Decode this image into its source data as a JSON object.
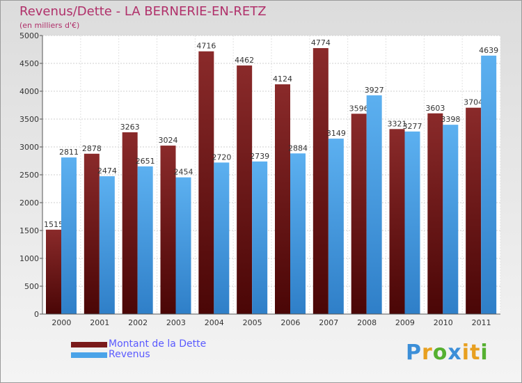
{
  "chart_data": {
    "type": "bar",
    "title": "Revenus/Dette - LA BERNERIE-EN-RETZ",
    "subtitle": "(en milliers d'€)",
    "categories": [
      "2000",
      "2001",
      "2002",
      "2003",
      "2004",
      "2005",
      "2006",
      "2007",
      "2008",
      "2009",
      "2010",
      "2011"
    ],
    "series": [
      {
        "name": "Montant de la Dette",
        "color": "#7a1a1a",
        "values": [
          1515,
          2878,
          3263,
          3024,
          4716,
          4462,
          4124,
          4774,
          3596,
          3321,
          3603,
          3704
        ]
      },
      {
        "name": "Revenus",
        "color": "#4aa3e8",
        "values": [
          2811,
          2474,
          2651,
          2454,
          2720,
          2739,
          2884,
          3149,
          3927,
          3277,
          3398,
          4639
        ]
      }
    ],
    "data_labels": [
      [
        "1515",
        "2878",
        "3263",
        "3024",
        "4716",
        "4462",
        "4124",
        "4774",
        "3596",
        "3321",
        "3603",
        "3704"
      ],
      [
        "2811",
        "2474",
        "2651",
        "2454",
        "2720",
        "2739",
        "2884",
        "3149",
        "3927",
        "3277",
        "3398",
        "4639"
      ]
    ],
    "ylim": [
      0,
      5000
    ],
    "yticks": [
      0,
      500,
      1000,
      1500,
      2000,
      2500,
      3000,
      3500,
      4000,
      4500,
      5000
    ],
    "grid": true,
    "legend": "bottom-left"
  },
  "logo": {
    "letters": [
      "P",
      "r",
      "o",
      "x",
      "i",
      "t",
      "i"
    ],
    "colors": [
      "#3c8fd8",
      "#e8a020",
      "#55b030",
      "#3c8fd8",
      "#e8a020",
      "#e8a020",
      "#55b030"
    ]
  }
}
